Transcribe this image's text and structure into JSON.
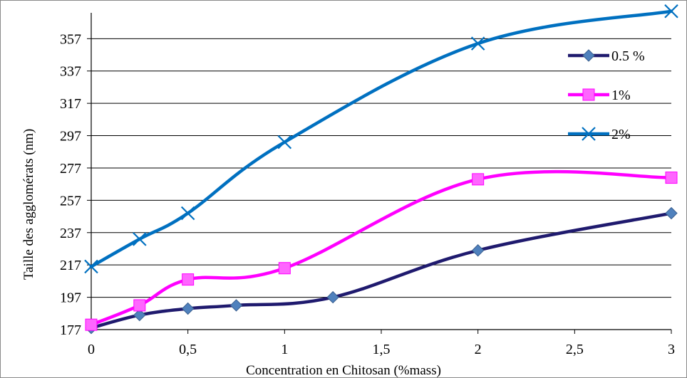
{
  "chart_data": {
    "type": "line",
    "title": "",
    "xlabel": "Concentration en Chitosan (%mass)",
    "ylabel": "Taille des agglomérats (nm)",
    "xlim": [
      0,
      3
    ],
    "ylim": [
      177,
      373
    ],
    "x_ticks": [
      0,
      0.5,
      1,
      1.5,
      2,
      2.5,
      3
    ],
    "x_tick_labels": [
      "0",
      "0,5",
      "1",
      "1,5",
      "2",
      "2,5",
      "3"
    ],
    "y_ticks": [
      177,
      197,
      217,
      237,
      257,
      277,
      297,
      317,
      337,
      357
    ],
    "y_tick_labels": [
      "177",
      "197",
      "217",
      "237",
      "257",
      "277",
      "297",
      "317",
      "337",
      "357"
    ],
    "grid": "horizontal",
    "legend_position": "top-right",
    "series": [
      {
        "name": "0.5 %",
        "color": "#1f1a6e",
        "marker": "diamond",
        "marker_color": "#4f81bd",
        "x": [
          0,
          0.25,
          0.5,
          0.75,
          1.25,
          2,
          3
        ],
        "y": [
          178,
          186,
          190,
          192,
          197,
          226,
          249
        ]
      },
      {
        "name": "1%",
        "color": "#ff00ff",
        "marker": "square",
        "marker_color": "#ff66ff",
        "x": [
          0,
          0.25,
          0.5,
          1,
          2,
          3
        ],
        "y": [
          180,
          192,
          208,
          215,
          270,
          271
        ]
      },
      {
        "name": "2%",
        "color": "#0070c0",
        "marker": "x",
        "marker_color": "#0070c0",
        "x": [
          0,
          0.25,
          0.5,
          1,
          2,
          3
        ],
        "y": [
          216,
          233,
          249,
          293,
          354,
          374
        ]
      }
    ]
  }
}
